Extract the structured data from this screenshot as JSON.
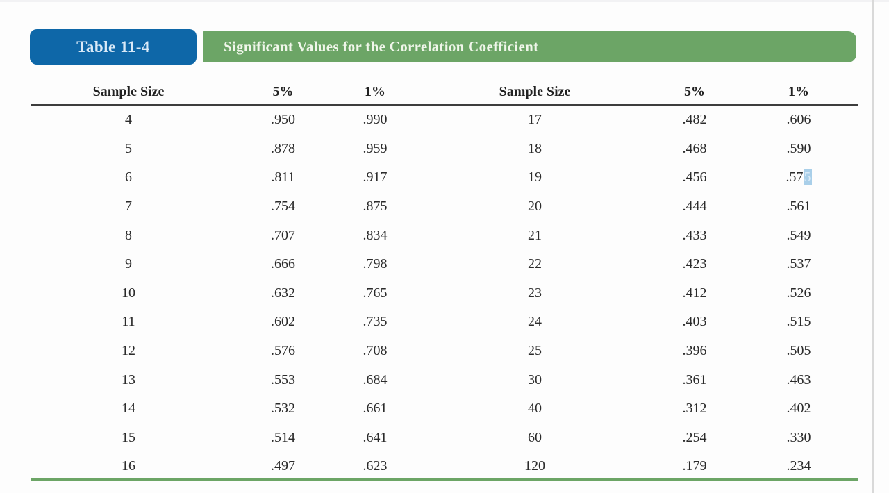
{
  "header": {
    "tab_label": "Table 11-4",
    "title": "Significant Values for the Correlation Coefficient"
  },
  "columns": {
    "sample_size": "Sample Size",
    "five_percent": "5%",
    "one_percent": "1%"
  },
  "left_rows": [
    [
      "4",
      ".950",
      ".990"
    ],
    [
      "5",
      ".878",
      ".959"
    ],
    [
      "6",
      ".811",
      ".917"
    ],
    [
      "7",
      ".754",
      ".875"
    ],
    [
      "8",
      ".707",
      ".834"
    ],
    [
      "9",
      ".666",
      ".798"
    ],
    [
      "10",
      ".632",
      ".765"
    ],
    [
      "11",
      ".602",
      ".735"
    ],
    [
      "12",
      ".576",
      ".708"
    ],
    [
      "13",
      ".553",
      ".684"
    ],
    [
      "14",
      ".532",
      ".661"
    ],
    [
      "15",
      ".514",
      ".641"
    ],
    [
      "16",
      ".497",
      ".623"
    ]
  ],
  "right_rows": [
    [
      "17",
      ".482",
      ".606"
    ],
    [
      "18",
      ".468",
      ".590"
    ],
    [
      "19",
      ".456",
      ".575"
    ],
    [
      "20",
      ".444",
      ".561"
    ],
    [
      "21",
      ".433",
      ".549"
    ],
    [
      "22",
      ".423",
      ".537"
    ],
    [
      "23",
      ".412",
      ".526"
    ],
    [
      "24",
      ".403",
      ".515"
    ],
    [
      "25",
      ".396",
      ".505"
    ],
    [
      "30",
      ".361",
      ".463"
    ],
    [
      "40",
      ".312",
      ".402"
    ],
    [
      "60",
      ".254",
      ".330"
    ],
    [
      "120",
      ".179",
      ".234"
    ]
  ],
  "selection": {
    "table": "right",
    "row_index": 2,
    "col_index": 2,
    "prefix": ".57",
    "selected_text": "5"
  },
  "colors": {
    "tab_blue": "#0e67a8",
    "bar_green": "#6ca566",
    "rule_dark": "#3d3d3d",
    "rule_green": "#6ca566",
    "selection_blue": "#a9cfe9",
    "text": "#2b2b2b"
  }
}
